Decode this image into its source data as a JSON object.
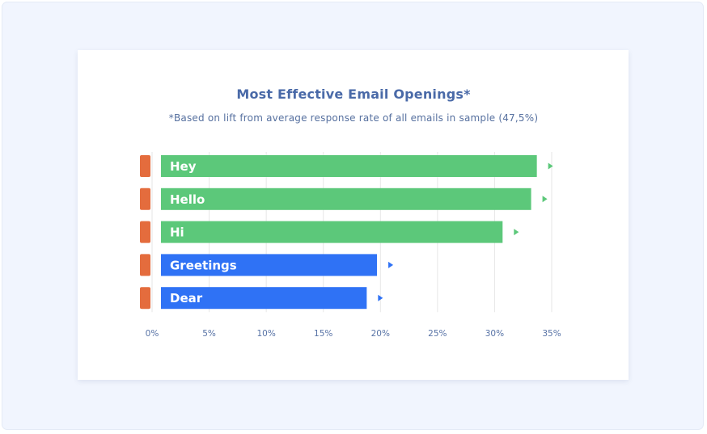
{
  "chart_data": {
    "type": "bar",
    "orientation": "horizontal",
    "title": "Most Effective Email Openings*",
    "subtitle": "*Based on lift from average response rate of all emails in sample (47,5%)",
    "categories": [
      "Hey",
      "Hello",
      "Hi",
      "Greetings",
      "Dear"
    ],
    "values": [
      33.7,
      33.2,
      30.7,
      19.7,
      18.8
    ],
    "xlim": [
      0,
      35
    ],
    "xticks": [
      0,
      5,
      10,
      15,
      20,
      25,
      30,
      35
    ],
    "xtick_labels": [
      "0%",
      "5%",
      "10%",
      "15%",
      "20%",
      "25%",
      "30%",
      "35%"
    ],
    "xlabel": "",
    "ylabel": "",
    "grid": true,
    "colors": {
      "green_bar": "#5cc87a",
      "blue_bar": "#2f72f5",
      "marker": "#e46c3d",
      "gridline": "#e6e6e6"
    },
    "bar_colors": [
      "#5cc87a",
      "#5cc87a",
      "#5cc87a",
      "#2f72f5",
      "#2f72f5"
    ]
  }
}
